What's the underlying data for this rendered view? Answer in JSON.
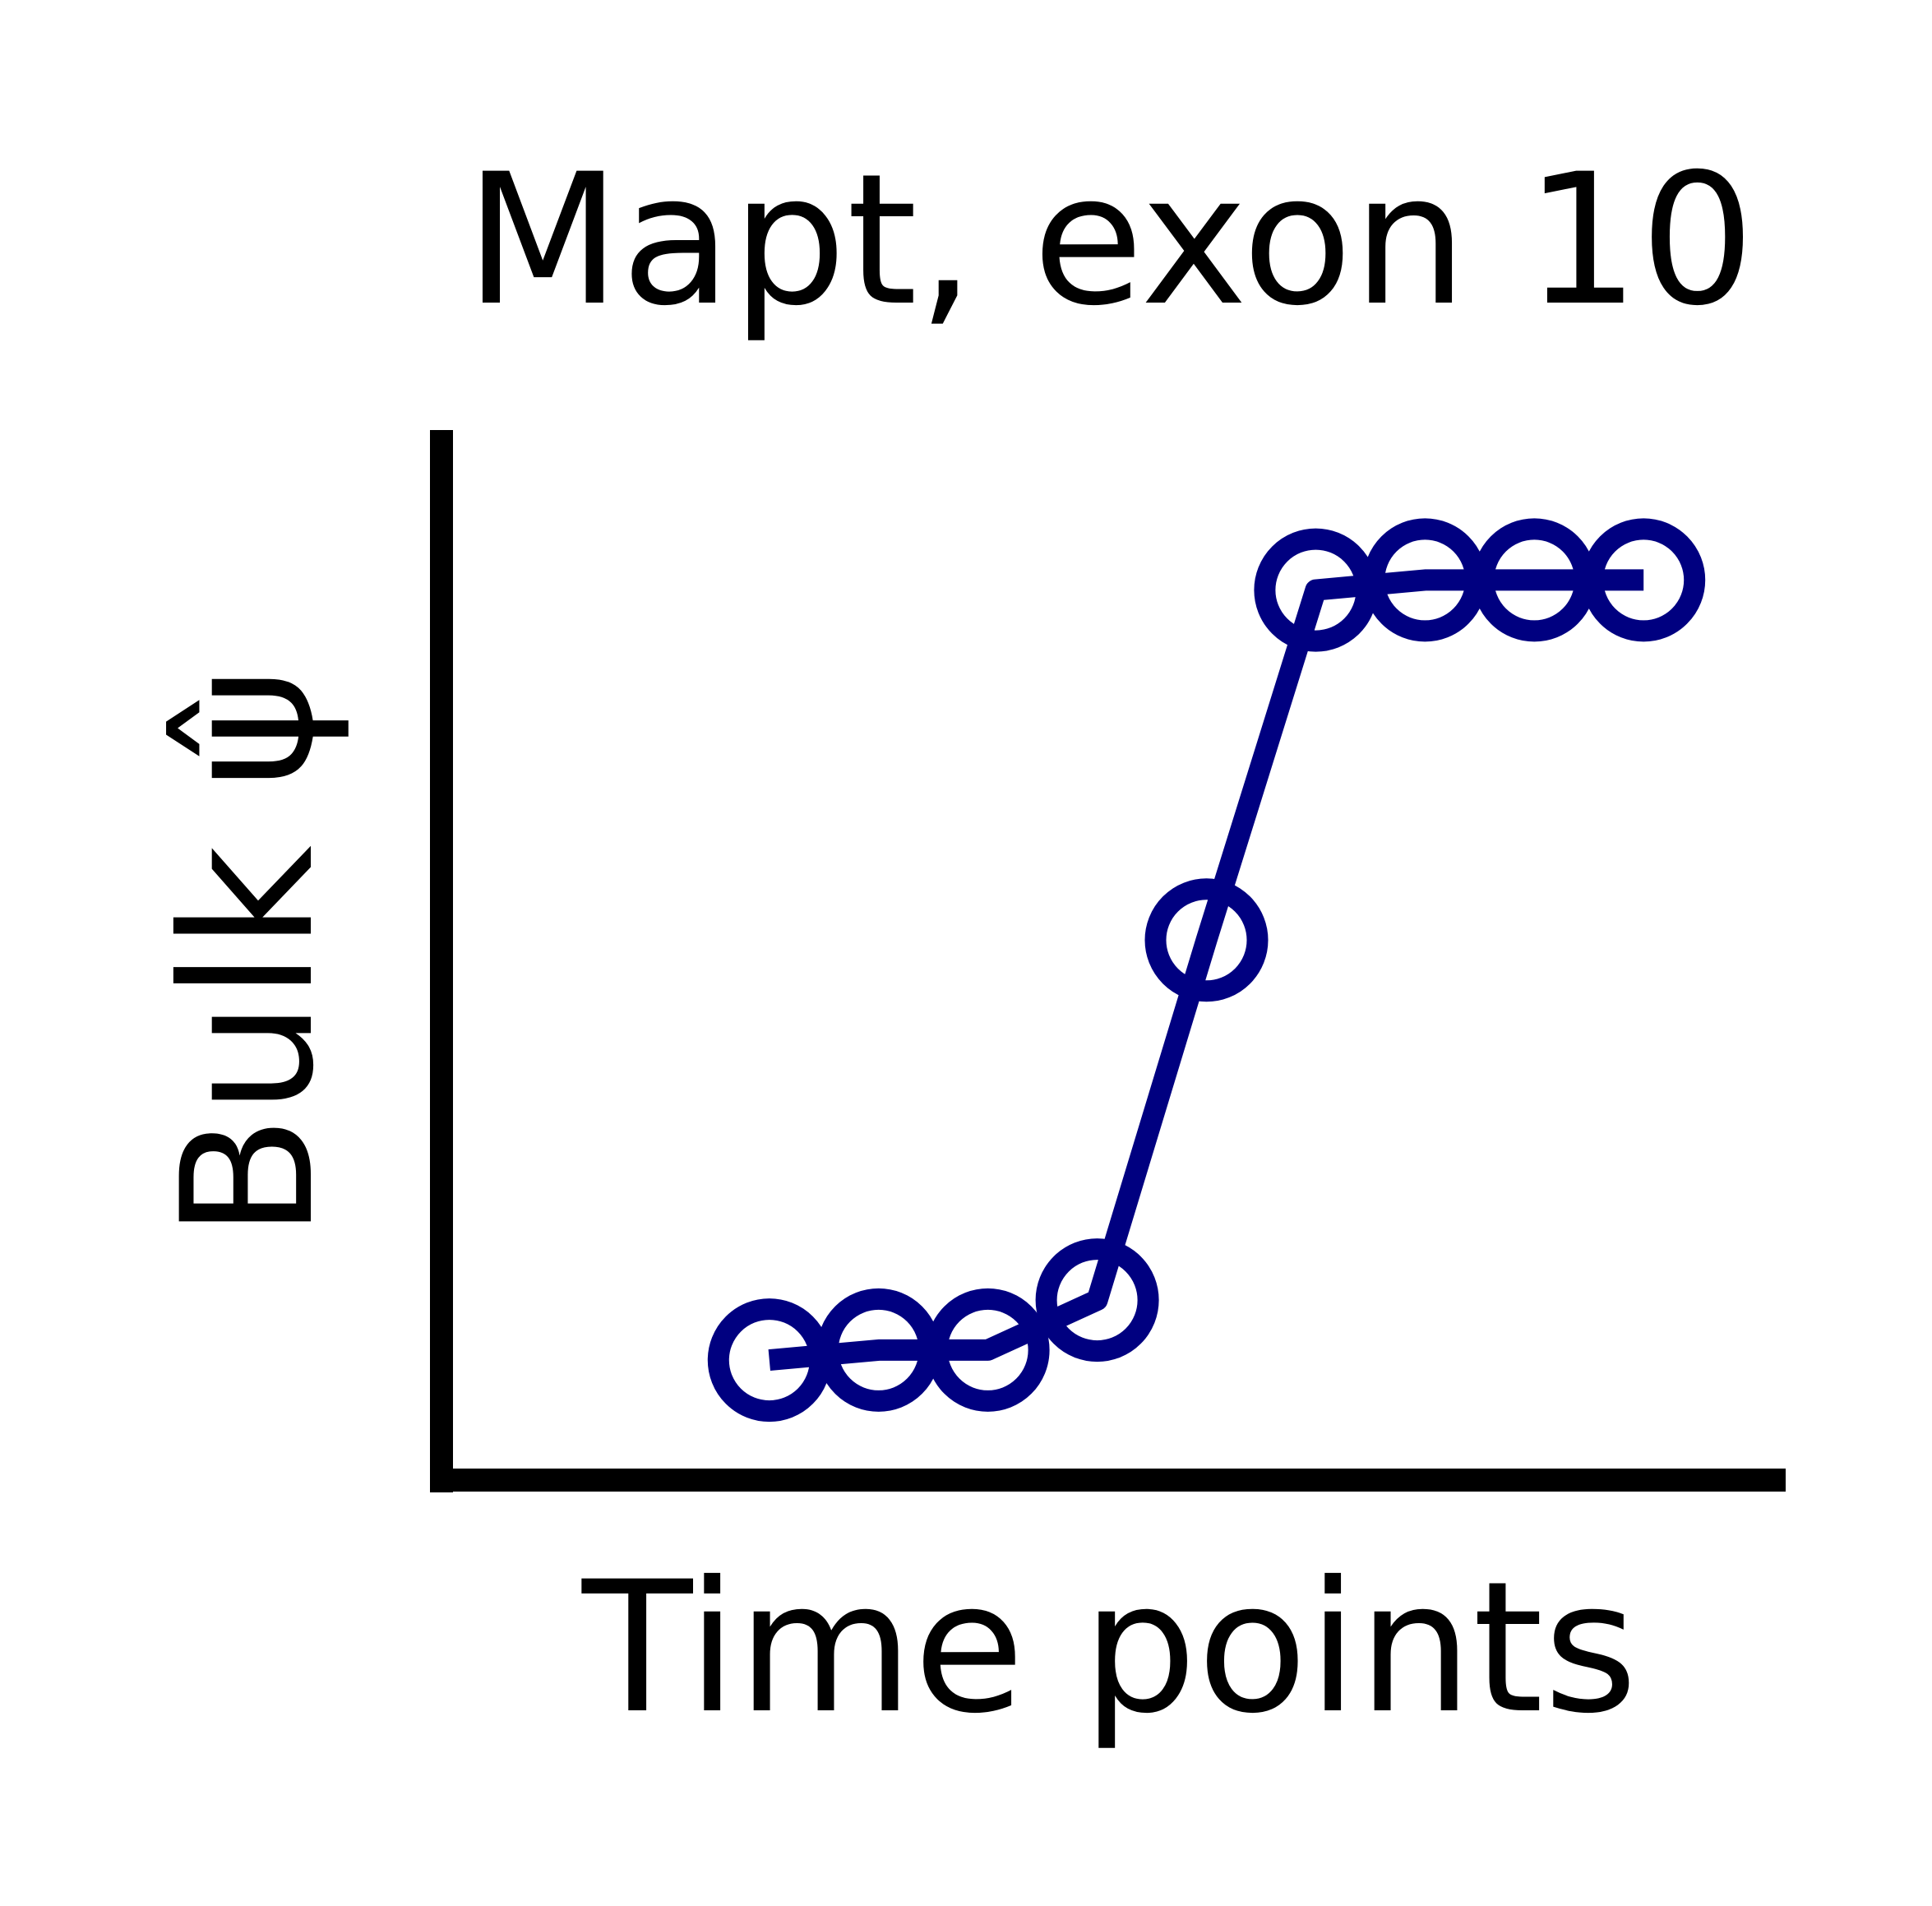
{
  "chart_data": {
    "type": "line",
    "title": "Mapt, exon 10",
    "xlabel": "Time points",
    "ylabel": "Bulk ψ̂",
    "x": [
      1,
      2,
      3,
      4,
      5,
      6,
      7,
      8,
      9
    ],
    "series": [
      {
        "values": [
          0.02,
          0.03,
          0.03,
          0.08,
          0.44,
          0.79,
          0.8,
          0.8,
          0.8
        ]
      }
    ],
    "xlim": [
      -2.0,
      10.3
    ],
    "ylim": [
      -0.1,
      0.95
    ],
    "grid": false,
    "legend": "none",
    "color": "#000080",
    "marker": "open-circle",
    "ticks": "none"
  }
}
